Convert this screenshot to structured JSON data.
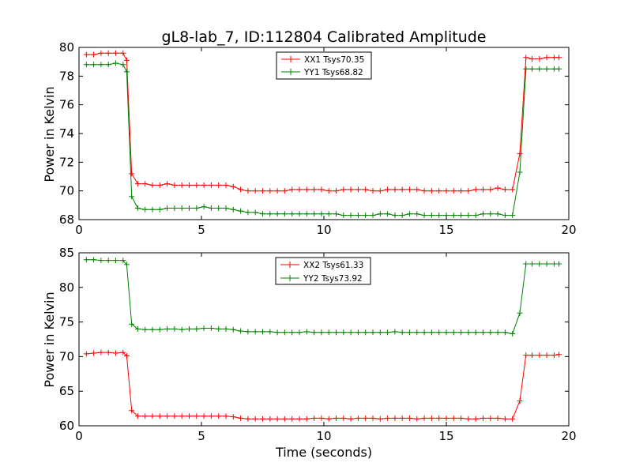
{
  "chart_data": [
    {
      "type": "line",
      "title": "gL8-lab_7, ID:112804 Calibrated Amplitude",
      "xlabel": "",
      "ylabel": "Power in Kelvin",
      "xlim": [
        0,
        20
      ],
      "ylim": [
        68,
        80
      ],
      "xticks": [
        "0",
        "5",
        "10",
        "15",
        "20"
      ],
      "yticks": [
        "68",
        "70",
        "72",
        "74",
        "76",
        "78",
        "80"
      ],
      "grid": false,
      "legend_position": "top-center",
      "x": [
        0.3,
        0.6,
        0.9,
        1.2,
        1.5,
        1.8,
        1.95,
        2.15,
        2.4,
        2.7,
        3.0,
        3.3,
        3.6,
        3.9,
        4.2,
        4.5,
        4.8,
        5.1,
        5.4,
        5.7,
        6.0,
        6.3,
        6.6,
        6.9,
        7.2,
        7.5,
        7.8,
        8.1,
        8.4,
        8.7,
        9.0,
        9.3,
        9.6,
        9.9,
        10.2,
        10.5,
        10.8,
        11.1,
        11.4,
        11.7,
        12.0,
        12.3,
        12.6,
        12.9,
        13.2,
        13.5,
        13.8,
        14.1,
        14.4,
        14.7,
        15.0,
        15.3,
        15.6,
        15.9,
        16.2,
        16.5,
        16.8,
        17.1,
        17.4,
        17.7,
        18.0,
        18.25,
        18.5,
        18.8,
        19.1,
        19.4,
        19.6
      ],
      "series": [
        {
          "name": "XX1 Tsys70.35",
          "color": "#ff0000",
          "values": [
            79.5,
            79.5,
            79.6,
            79.6,
            79.6,
            79.6,
            79.1,
            71.2,
            70.5,
            70.5,
            70.4,
            70.4,
            70.5,
            70.4,
            70.4,
            70.4,
            70.4,
            70.4,
            70.4,
            70.4,
            70.4,
            70.3,
            70.1,
            70.0,
            70.0,
            70.0,
            70.0,
            70.0,
            70.0,
            70.1,
            70.1,
            70.1,
            70.1,
            70.1,
            70.0,
            70.0,
            70.1,
            70.1,
            70.1,
            70.1,
            70.0,
            70.0,
            70.1,
            70.1,
            70.1,
            70.1,
            70.1,
            70.0,
            70.0,
            70.0,
            70.0,
            70.0,
            70.0,
            70.0,
            70.1,
            70.1,
            70.1,
            70.2,
            70.1,
            70.1,
            72.6,
            79.3,
            79.2,
            79.2,
            79.3,
            79.3,
            79.3
          ]
        },
        {
          "name": "YY1 Tsys68.82",
          "color": "#008000",
          "values": [
            78.8,
            78.8,
            78.8,
            78.8,
            78.9,
            78.8,
            78.3,
            69.6,
            68.8,
            68.7,
            68.7,
            68.7,
            68.8,
            68.8,
            68.8,
            68.8,
            68.8,
            68.9,
            68.8,
            68.8,
            68.8,
            68.7,
            68.6,
            68.5,
            68.5,
            68.4,
            68.4,
            68.4,
            68.4,
            68.4,
            68.4,
            68.4,
            68.4,
            68.4,
            68.4,
            68.4,
            68.3,
            68.3,
            68.3,
            68.3,
            68.3,
            68.4,
            68.4,
            68.3,
            68.3,
            68.4,
            68.4,
            68.3,
            68.3,
            68.3,
            68.3,
            68.3,
            68.3,
            68.3,
            68.3,
            68.4,
            68.4,
            68.4,
            68.3,
            68.3,
            71.3,
            78.5,
            78.5,
            78.5,
            78.5,
            78.5,
            78.5
          ]
        }
      ]
    },
    {
      "type": "line",
      "title": "",
      "xlabel": "Time (seconds)",
      "ylabel": "Power in Kelvin",
      "xlim": [
        0,
        20
      ],
      "ylim": [
        60,
        85
      ],
      "xticks": [
        "0",
        "5",
        "10",
        "15",
        "20"
      ],
      "yticks": [
        "60",
        "65",
        "70",
        "75",
        "80",
        "85"
      ],
      "grid": false,
      "legend_position": "top-center",
      "x": [
        0.3,
        0.6,
        0.9,
        1.2,
        1.5,
        1.8,
        1.95,
        2.15,
        2.4,
        2.7,
        3.0,
        3.3,
        3.6,
        3.9,
        4.2,
        4.5,
        4.8,
        5.1,
        5.4,
        5.7,
        6.0,
        6.3,
        6.6,
        6.9,
        7.2,
        7.5,
        7.8,
        8.1,
        8.4,
        8.7,
        9.0,
        9.3,
        9.6,
        9.9,
        10.2,
        10.5,
        10.8,
        11.1,
        11.4,
        11.7,
        12.0,
        12.3,
        12.6,
        12.9,
        13.2,
        13.5,
        13.8,
        14.1,
        14.4,
        14.7,
        15.0,
        15.3,
        15.6,
        15.9,
        16.2,
        16.5,
        16.8,
        17.1,
        17.4,
        17.7,
        18.0,
        18.25,
        18.5,
        18.8,
        19.1,
        19.4,
        19.6
      ],
      "series": [
        {
          "name": "XX2 Tsys61.33",
          "color": "#ff0000",
          "values": [
            70.4,
            70.5,
            70.6,
            70.6,
            70.5,
            70.6,
            70.1,
            62.2,
            61.4,
            61.4,
            61.4,
            61.4,
            61.4,
            61.4,
            61.4,
            61.4,
            61.4,
            61.4,
            61.4,
            61.4,
            61.4,
            61.3,
            61.1,
            61.0,
            61.0,
            61.0,
            61.0,
            61.0,
            61.0,
            61.0,
            61.0,
            61.0,
            61.1,
            61.1,
            61.0,
            61.1,
            61.1,
            61.0,
            61.1,
            61.1,
            61.1,
            61.0,
            61.1,
            61.1,
            61.1,
            61.1,
            61.0,
            61.1,
            61.1,
            61.1,
            61.1,
            61.1,
            61.1,
            61.0,
            61.0,
            61.1,
            61.1,
            61.1,
            61.0,
            61.0,
            63.6,
            70.2,
            70.2,
            70.2,
            70.2,
            70.2,
            70.3
          ]
        },
        {
          "name": "YY2 Tsys73.92",
          "color": "#008000",
          "values": [
            84.0,
            84.0,
            83.9,
            83.9,
            83.9,
            83.9,
            83.3,
            74.7,
            74.0,
            73.9,
            73.9,
            73.9,
            74.0,
            74.0,
            73.9,
            74.0,
            74.0,
            74.1,
            74.1,
            74.0,
            74.0,
            73.9,
            73.7,
            73.6,
            73.6,
            73.6,
            73.6,
            73.5,
            73.5,
            73.5,
            73.5,
            73.6,
            73.5,
            73.5,
            73.5,
            73.5,
            73.5,
            73.5,
            73.5,
            73.5,
            73.5,
            73.5,
            73.5,
            73.6,
            73.5,
            73.5,
            73.5,
            73.5,
            73.5,
            73.5,
            73.5,
            73.5,
            73.5,
            73.5,
            73.5,
            73.5,
            73.5,
            73.5,
            73.5,
            73.3,
            76.3,
            83.4,
            83.4,
            83.4,
            83.4,
            83.4,
            83.4
          ]
        }
      ]
    }
  ]
}
